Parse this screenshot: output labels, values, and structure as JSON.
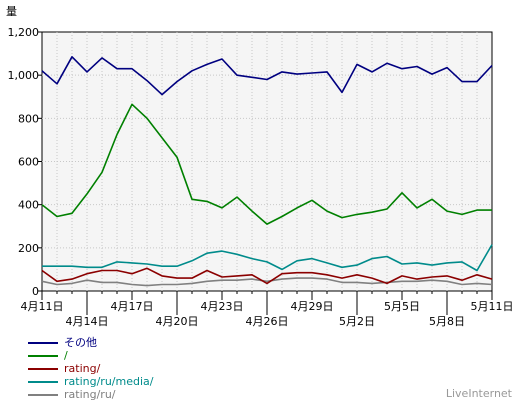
{
  "chart_data": {
    "type": "line",
    "ylabel": "量",
    "ylim": [
      0,
      1200
    ],
    "yticks": [
      "0",
      "200",
      "400",
      "600",
      "800",
      "1,000",
      "1,200"
    ],
    "x": [
      "4/11",
      "4/12",
      "4/13",
      "4/14",
      "4/15",
      "4/16",
      "4/17",
      "4/18",
      "4/19",
      "4/20",
      "4/21",
      "4/22",
      "4/23",
      "4/24",
      "4/25",
      "4/26",
      "4/27",
      "4/28",
      "4/29",
      "4/30",
      "5/1",
      "5/2",
      "5/3",
      "5/4",
      "5/5",
      "5/6",
      "5/7",
      "5/8",
      "5/9",
      "5/10",
      "5/11"
    ],
    "xticks_upper": [
      {
        "idx": 0,
        "label": "4月11日"
      },
      {
        "idx": 6,
        "label": "4月17日"
      },
      {
        "idx": 12,
        "label": "4月23日"
      },
      {
        "idx": 18,
        "label": "4月29日"
      },
      {
        "idx": 24,
        "label": "5月5日"
      },
      {
        "idx": 30,
        "label": "5月11日"
      }
    ],
    "xticks_lower": [
      {
        "idx": 3,
        "label": "4月14日"
      },
      {
        "idx": 9,
        "label": "4月20日"
      },
      {
        "idx": 15,
        "label": "4月26日"
      },
      {
        "idx": 21,
        "label": "5月2日"
      },
      {
        "idx": 27,
        "label": "5月8日"
      }
    ],
    "grid": true,
    "legend_position": "bottom-left",
    "series": [
      {
        "name": "その他",
        "color": "#000080",
        "values": [
          1020,
          960,
          1085,
          1015,
          1080,
          1030,
          1030,
          975,
          910,
          970,
          1020,
          1050,
          1075,
          1000,
          990,
          980,
          1015,
          1005,
          1010,
          1015,
          920,
          1050,
          1015,
          1055,
          1030,
          1040,
          1005,
          1035,
          970,
          970,
          1045
        ]
      },
      {
        "name": "/",
        "color": "#008000",
        "values": [
          400,
          345,
          360,
          450,
          550,
          725,
          865,
          800,
          710,
          620,
          425,
          415,
          385,
          435,
          370,
          310,
          345,
          385,
          420,
          370,
          340,
          355,
          365,
          380,
          455,
          385,
          425,
          370,
          355,
          375,
          375
        ]
      },
      {
        "name": "rating/",
        "color": "#8B0000",
        "values": [
          95,
          45,
          55,
          80,
          95,
          95,
          80,
          105,
          70,
          60,
          60,
          95,
          65,
          70,
          75,
          35,
          80,
          85,
          85,
          75,
          60,
          75,
          60,
          35,
          70,
          55,
          65,
          70,
          50,
          75,
          55
        ]
      },
      {
        "name": "rating/ru/media/",
        "color": "#008B8B",
        "values": [
          115,
          115,
          115,
          110,
          110,
          135,
          130,
          125,
          115,
          115,
          140,
          175,
          185,
          170,
          150,
          135,
          100,
          140,
          150,
          130,
          110,
          120,
          150,
          160,
          125,
          130,
          120,
          130,
          135,
          95,
          215
        ]
      },
      {
        "name": "rating/ru/",
        "color": "#808080",
        "values": [
          45,
          30,
          35,
          50,
          40,
          40,
          30,
          25,
          30,
          30,
          35,
          45,
          50,
          50,
          55,
          45,
          55,
          60,
          60,
          55,
          40,
          40,
          35,
          40,
          45,
          45,
          50,
          45,
          30,
          35,
          30
        ]
      }
    ]
  },
  "brand": "LiveInternet"
}
